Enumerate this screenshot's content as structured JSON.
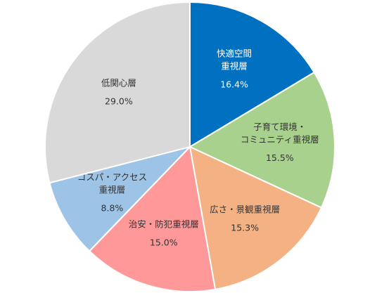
{
  "chart_data": {
    "type": "pie",
    "title": "",
    "slices": [
      {
        "name_lines": [
          "快適空間",
          "重視層"
        ],
        "value": 16.4,
        "label": "16.4%",
        "color": "#0070C0",
        "text_color": "#ffffff"
      },
      {
        "name_lines": [
          "子育て環境・",
          "コミュニティ重視層"
        ],
        "value": 15.5,
        "label": "15.5%",
        "color": "#A9D18E",
        "text_color": "#333333"
      },
      {
        "name_lines": [
          "広さ・景観重視層"
        ],
        "value": 15.3,
        "label": "15.3%",
        "color": "#F4B183",
        "text_color": "#333333"
      },
      {
        "name_lines": [
          "治安・防犯重視層"
        ],
        "value": 15.0,
        "label": "15.0%",
        "color": "#FF9999",
        "text_color": "#333333"
      },
      {
        "name_lines": [
          "コスパ・アクセス",
          "重視層"
        ],
        "value": 8.8,
        "label": "8.8%",
        "color": "#9DC3E6",
        "text_color": "#333333"
      },
      {
        "name_lines": [
          "低関心層"
        ],
        "value": 29.0,
        "label": "29.0%",
        "color": "#D9D9D9",
        "text_color": "#333333"
      }
    ]
  }
}
